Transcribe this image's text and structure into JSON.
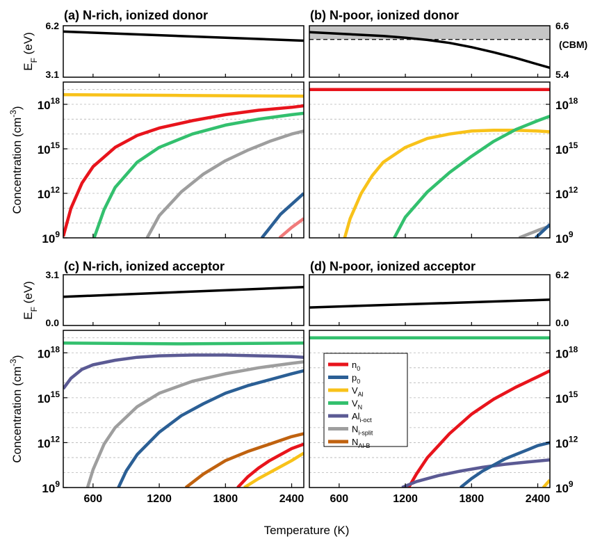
{
  "figure": {
    "xlabel": "Temperature (K)",
    "ef_ylabel": "E_F (eV)",
    "conc_ylabel": "Concentration (cm^-3)",
    "x_ticks": [
      600,
      1200,
      1800,
      2400
    ],
    "xlim": [
      330,
      2510
    ]
  },
  "legend": [
    {
      "key": "n0",
      "base": "n",
      "sub": "0",
      "color": "#e8141c"
    },
    {
      "key": "p0",
      "base": "p",
      "sub": "0",
      "color": "#2b5f95"
    },
    {
      "key": "VAl",
      "base": "V",
      "sub": "Al",
      "color": "#f8c21a"
    },
    {
      "key": "VN",
      "base": "V",
      "sub": "N",
      "color": "#33c06e"
    },
    {
      "key": "Aloct",
      "base": "Al",
      "sub": "i-oct",
      "color": "#5b5a94"
    },
    {
      "key": "Nsplit",
      "base": "N",
      "sub": "i-split",
      "color": "#9e9e9e"
    },
    {
      "key": "NAlB",
      "base": "N",
      "sub": "Al-B",
      "color": "#c0620f"
    }
  ],
  "chart_data": [
    {
      "panel": "a",
      "title": "(a) N-rich, ionized donor",
      "type": "line",
      "ef": {
        "ylim": [
          3.1,
          6.2
        ],
        "y_tick_labels": [
          "6.2",
          "3.1"
        ],
        "tick_side": "left",
        "series": [
          {
            "x": [
              330,
              2510
            ],
            "y": [
              5.85,
              5.3
            ],
            "color": "#000000"
          }
        ]
      },
      "conc": {
        "scale": "log",
        "ylim_exp": [
          9,
          19.5
        ],
        "tick_exps": [
          9,
          12,
          15,
          18
        ],
        "tick_side": "left",
        "series": [
          {
            "key": "VAl",
            "color": "#f8c21a",
            "x": [
              330,
              1400,
              2510
            ],
            "y": [
              18.65,
              18.6,
              18.55
            ]
          },
          {
            "key": "n0",
            "color": "#e8141c",
            "x": [
              330,
              400,
              500,
              600,
              800,
              1000,
              1200,
              1500,
              1800,
              2100,
              2400,
              2510
            ],
            "y": [
              9.1,
              11.0,
              12.7,
              13.8,
              15.1,
              15.9,
              16.4,
              16.9,
              17.3,
              17.6,
              17.8,
              17.9
            ]
          },
          {
            "key": "VN",
            "color": "#33c06e",
            "x": [
              610,
              700,
              800,
              1000,
              1200,
              1500,
              1800,
              2100,
              2400,
              2510
            ],
            "y": [
              9.0,
              10.9,
              12.4,
              14.1,
              15.1,
              16.0,
              16.6,
              17.0,
              17.3,
              17.4
            ]
          },
          {
            "key": "Nsplit",
            "color": "#9e9e9e",
            "x": [
              1090,
              1200,
              1400,
              1600,
              1800,
              2000,
              2200,
              2400,
              2510
            ],
            "y": [
              9.0,
              10.5,
              12.1,
              13.3,
              14.2,
              14.9,
              15.5,
              16.0,
              16.2
            ]
          },
          {
            "key": "p0",
            "color": "#2b5f95",
            "x": [
              2130,
              2300,
              2510
            ],
            "y": [
              9.0,
              10.6,
              12.0
            ]
          },
          {
            "key": "NAlB",
            "color": "#f07a7a",
            "x": [
              2290,
              2400,
              2510
            ],
            "y": [
              9.0,
              9.7,
              10.3
            ]
          }
        ]
      }
    },
    {
      "panel": "b",
      "title": "(b) N-poor, ionized donor",
      "type": "line",
      "ef": {
        "ylim": [
          5.4,
          6.6
        ],
        "y_tick_labels": [
          "6.6",
          "5.4"
        ],
        "tick_side": "right",
        "cbm_label": "(CBM)",
        "cbm_value": 6.28,
        "band_color": "#c6c6c6",
        "series": [
          {
            "x": [
              330,
              700,
              1000,
              1200,
              1400,
              1600,
              1800,
              2000,
              2200,
              2400,
              2510
            ],
            "y": [
              6.45,
              6.4,
              6.36,
              6.32,
              6.27,
              6.2,
              6.1,
              5.98,
              5.85,
              5.7,
              5.62
            ],
            "color": "#000000"
          }
        ]
      },
      "conc": {
        "scale": "log",
        "ylim_exp": [
          9,
          19.5
        ],
        "tick_exps": [
          9,
          12,
          15,
          18
        ],
        "tick_side": "right",
        "series": [
          {
            "key": "n0",
            "color": "#e8141c",
            "x": [
              330,
              2510
            ],
            "y": [
              19.0,
              19.0
            ]
          },
          {
            "key": "VAl",
            "color": "#f8c21a",
            "x": [
              650,
              700,
              800,
              900,
              1000,
              1200,
              1400,
              1600,
              1800,
              2000,
              2200,
              2400,
              2510
            ],
            "y": [
              9.0,
              10.3,
              12.0,
              13.2,
              14.1,
              15.1,
              15.7,
              16.0,
              16.2,
              16.25,
              16.25,
              16.2,
              16.15
            ]
          },
          {
            "key": "VN",
            "color": "#33c06e",
            "x": [
              1100,
              1200,
              1400,
              1600,
              1800,
              2000,
              2200,
              2400,
              2510
            ],
            "y": [
              9.0,
              10.4,
              12.1,
              13.4,
              14.5,
              15.5,
              16.3,
              16.9,
              17.2
            ]
          },
          {
            "key": "Nsplit",
            "color": "#9e9e9e",
            "x": [
              2230,
              2400,
              2510
            ],
            "y": [
              9.0,
              9.5,
              9.8
            ]
          },
          {
            "key": "p0",
            "color": "#2b5f95",
            "x": [
              2380,
              2510
            ],
            "y": [
              9.0,
              9.9
            ]
          }
        ]
      }
    },
    {
      "panel": "c",
      "title": "(c) N-rich, ionized acceptor",
      "type": "line",
      "ef": {
        "ylim": [
          0.0,
          3.1
        ],
        "y_tick_labels": [
          "3.1",
          "0.0"
        ],
        "tick_side": "left",
        "series": [
          {
            "x": [
              330,
              2510
            ],
            "y": [
              1.75,
              2.35
            ],
            "color": "#000000"
          }
        ]
      },
      "conc": {
        "scale": "log",
        "ylim_exp": [
          9,
          19.5
        ],
        "tick_exps": [
          9,
          12,
          15,
          18
        ],
        "tick_side": "left",
        "series": [
          {
            "key": "VN",
            "color": "#33c06e",
            "x": [
              330,
              1400,
              2510
            ],
            "y": [
              18.65,
              18.6,
              18.65
            ]
          },
          {
            "key": "Aloct",
            "color": "#5b5a94",
            "x": [
              330,
              400,
              500,
              600,
              800,
              1000,
              1200,
              1500,
              1800,
              2100,
              2400,
              2510
            ],
            "y": [
              15.6,
              16.3,
              16.9,
              17.2,
              17.5,
              17.7,
              17.8,
              17.85,
              17.85,
              17.8,
              17.75,
              17.7
            ]
          },
          {
            "key": "Nsplit",
            "color": "#9e9e9e",
            "x": [
              550,
              600,
              700,
              800,
              1000,
              1200,
              1500,
              1800,
              2100,
              2400,
              2510
            ],
            "y": [
              9.0,
              10.2,
              11.9,
              13.0,
              14.4,
              15.3,
              16.1,
              16.6,
              17.0,
              17.3,
              17.4
            ]
          },
          {
            "key": "p0",
            "color": "#2b5f95",
            "x": [
              830,
              900,
              1000,
              1200,
              1400,
              1600,
              1800,
              2000,
              2200,
              2400,
              2510
            ],
            "y": [
              9.0,
              10.1,
              11.2,
              12.7,
              13.8,
              14.6,
              15.3,
              15.8,
              16.2,
              16.6,
              16.8
            ]
          },
          {
            "key": "NAlB",
            "color": "#c0620f",
            "x": [
              1440,
              1600,
              1800,
              2000,
              2200,
              2400,
              2510
            ],
            "y": [
              9.0,
              9.9,
              10.8,
              11.4,
              11.9,
              12.4,
              12.6
            ]
          },
          {
            "key": "n0",
            "color": "#e8141c",
            "x": [
              1910,
              2000,
              2100,
              2200,
              2300,
              2400,
              2510
            ],
            "y": [
              9.0,
              9.7,
              10.3,
              10.8,
              11.2,
              11.6,
              11.9
            ]
          },
          {
            "key": "VAl",
            "color": "#f8c21a",
            "x": [
              1970,
              2100,
              2200,
              2300,
              2400,
              2510
            ],
            "y": [
              9.0,
              9.6,
              10.0,
              10.4,
              10.8,
              11.3
            ]
          }
        ]
      }
    },
    {
      "panel": "d",
      "title": "(d) N-poor, ionized acceptor",
      "type": "line",
      "ef": {
        "ylim": [
          0.0,
          6.2
        ],
        "y_tick_labels": [
          "6.2",
          "0.0"
        ],
        "tick_side": "right",
        "series": [
          {
            "x": [
              330,
              2510
            ],
            "y": [
              2.2,
              3.15
            ],
            "color": "#000000"
          }
        ]
      },
      "conc": {
        "scale": "log",
        "ylim_exp": [
          9,
          19.5
        ],
        "tick_exps": [
          9,
          12,
          15,
          18
        ],
        "tick_side": "right",
        "series": [
          {
            "key": "VN",
            "color": "#33c06e",
            "x": [
              330,
              2510
            ],
            "y": [
              19.0,
              19.0
            ]
          },
          {
            "key": "n0",
            "color": "#e8141c",
            "x": [
              1230,
              1300,
              1400,
              1600,
              1800,
              2000,
              2200,
              2400,
              2510
            ],
            "y": [
              9.0,
              9.9,
              11.0,
              12.6,
              13.9,
              14.9,
              15.7,
              16.4,
              16.8
            ]
          },
          {
            "key": "Aloct",
            "color": "#5b5a94",
            "x": [
              1170,
              1300,
              1500,
              1700,
              1900,
              2100,
              2300,
              2510
            ],
            "y": [
              9.0,
              9.4,
              9.8,
              10.1,
              10.35,
              10.55,
              10.7,
              10.85
            ]
          },
          {
            "key": "p0",
            "color": "#2b5f95",
            "x": [
              1700,
              1800,
              1900,
              2000,
              2100,
              2200,
              2300,
              2400,
              2510
            ],
            "y": [
              9.0,
              9.6,
              10.1,
              10.5,
              10.9,
              11.2,
              11.5,
              11.8,
              12.0
            ]
          },
          {
            "key": "VAl",
            "color": "#f8c21a",
            "x": [
              2450,
              2510
            ],
            "y": [
              9.0,
              9.5
            ]
          }
        ]
      }
    }
  ]
}
